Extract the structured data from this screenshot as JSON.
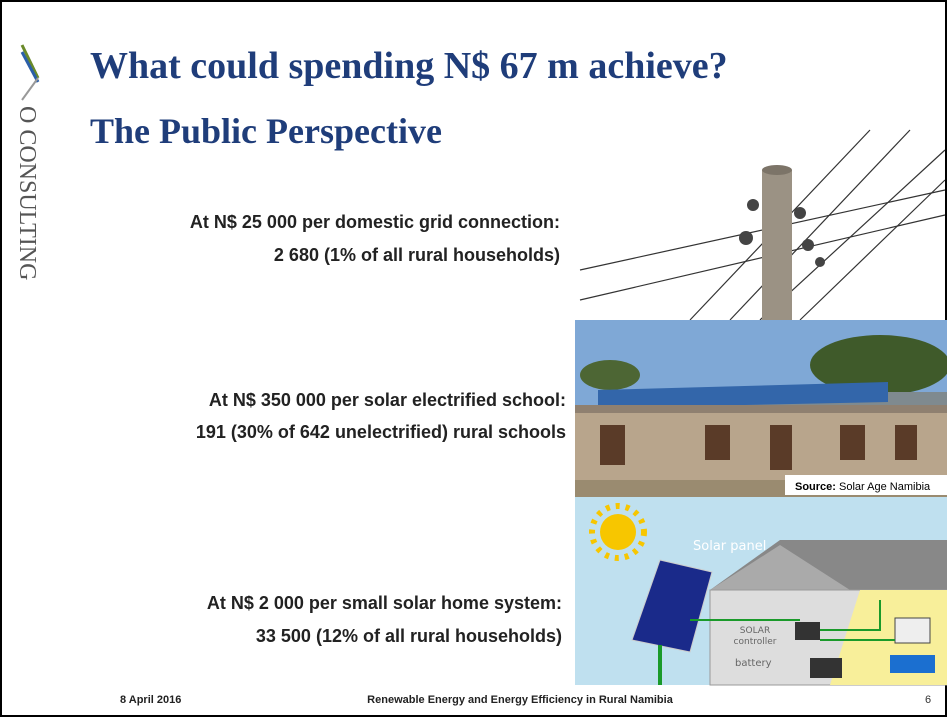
{
  "logo": "O CONSULTING",
  "title": "What could spending N$ 67 m achieve?",
  "subtitle": "The Public Perspective",
  "items": [
    {
      "line1": "At N$ 25 000 per domestic grid connection:",
      "line2": "2 680 (1% of all rural households)"
    },
    {
      "line1": "At N$ 350 000 per solar electrified school:",
      "line2": "191 (30% of 642 unelectrified) rural schools"
    },
    {
      "line1": "At N$ 2 000 per small solar home system:",
      "line2": "33 500 (12% of all rural households)"
    }
  ],
  "source": {
    "label": "Source:",
    "text": "Solar Age Namibia"
  },
  "diagram": {
    "panel": "Solar panel",
    "controller1": "SOLAR",
    "controller2": "controller",
    "battery": "battery"
  },
  "footer": {
    "date": "8 April 2016",
    "center": "Renewable Energy and Energy Efficiency in Rural Namibia",
    "page": "6"
  }
}
